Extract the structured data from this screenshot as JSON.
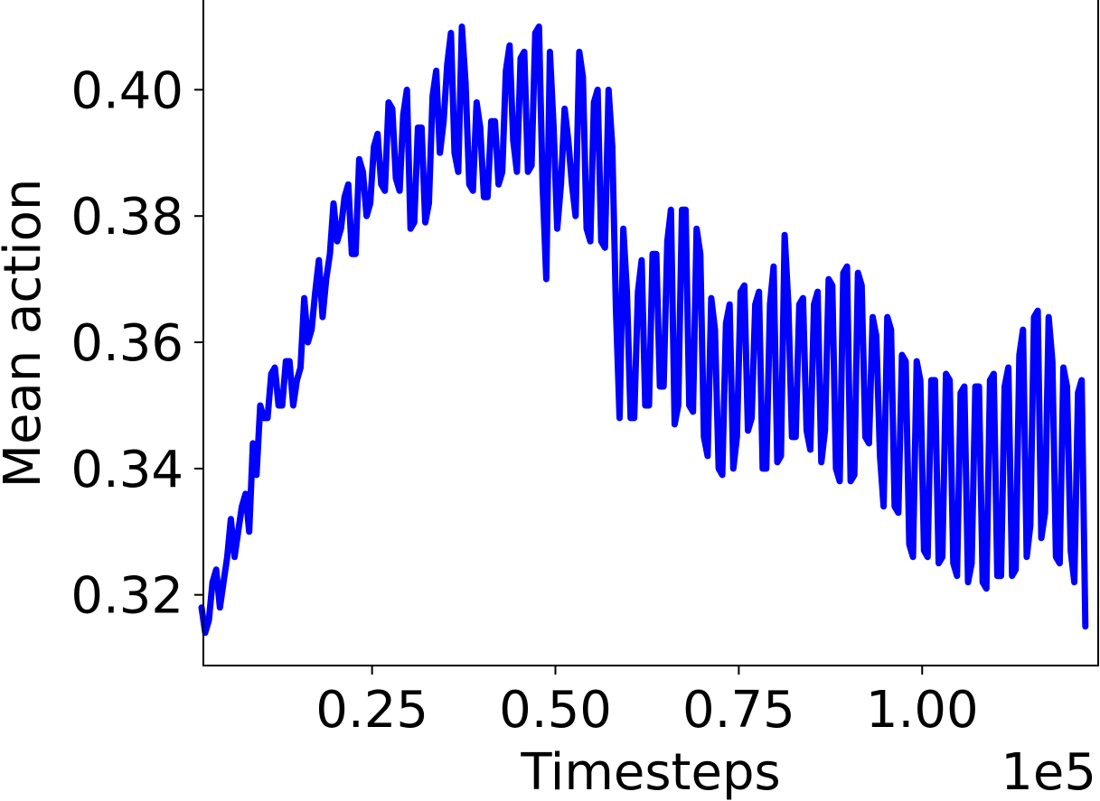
{
  "chart_data": {
    "type": "line",
    "title": "",
    "xlabel": "Timesteps",
    "ylabel": "Mean action",
    "x_offset_label": "1e5",
    "xlim": [
      0.02,
      1.24
    ],
    "ylim": [
      0.3088,
      0.4145
    ],
    "xticks": [
      0.25,
      0.5,
      0.75,
      1.0
    ],
    "xtick_labels": [
      "0.25",
      "0.50",
      "0.75",
      "1.00"
    ],
    "yticks": [
      0.32,
      0.34,
      0.36,
      0.38,
      0.4
    ],
    "ytick_labels": [
      "0.32",
      "0.34",
      "0.36",
      "0.38",
      "0.40"
    ],
    "grid": false,
    "legend": "none",
    "series": [
      {
        "color": "#0000ff",
        "x_unit": "1e5 timesteps",
        "x": [
          0.02,
          0.03,
          0.04,
          0.05,
          0.06,
          0.07,
          0.08,
          0.09,
          0.1,
          0.11,
          0.12,
          0.13,
          0.14,
          0.15,
          0.16,
          0.17,
          0.18,
          0.19,
          0.2,
          0.21,
          0.22,
          0.23,
          0.24,
          0.25,
          0.26,
          0.27,
          0.28,
          0.29,
          0.3,
          0.31,
          0.32,
          0.33,
          0.34,
          0.35,
          0.36,
          0.37,
          0.38,
          0.39,
          0.4,
          0.41,
          0.42,
          0.43,
          0.44,
          0.45,
          0.46,
          0.47,
          0.48,
          0.49,
          0.5,
          0.51,
          0.52,
          0.53,
          0.54,
          0.55,
          0.56,
          0.57,
          0.58,
          0.59,
          0.6,
          0.61,
          0.62,
          0.63,
          0.64,
          0.65,
          0.66,
          0.67,
          0.68,
          0.69,
          0.7,
          0.71,
          0.72,
          0.73,
          0.74,
          0.75,
          0.76,
          0.77,
          0.78,
          0.79,
          0.8,
          0.81,
          0.82,
          0.83,
          0.84,
          0.85,
          0.86,
          0.87,
          0.88,
          0.89,
          0.9,
          0.91,
          0.92,
          0.93,
          0.94,
          0.95,
          0.96,
          0.97,
          0.98,
          0.99,
          1.0,
          1.01,
          1.02,
          1.03,
          1.04,
          1.05,
          1.06,
          1.07,
          1.08,
          1.09,
          1.1,
          1.11,
          1.12,
          1.13,
          1.14,
          1.15,
          1.16,
          1.17,
          1.18,
          1.19,
          1.2,
          1.21,
          1.22,
          1.23,
          1.24
        ],
        "y_min": [
          0.314,
          0.316,
          0.318,
          0.322,
          0.326,
          0.33,
          0.33,
          0.344,
          0.348,
          0.348,
          0.35,
          0.35,
          0.35,
          0.354,
          0.36,
          0.362,
          0.364,
          0.37,
          0.376,
          0.378,
          0.374,
          0.374,
          0.38,
          0.382,
          0.385,
          0.384,
          0.386,
          0.384,
          0.378,
          0.379,
          0.379,
          0.382,
          0.39,
          0.395,
          0.39,
          0.387,
          0.385,
          0.384,
          0.383,
          0.383,
          0.385,
          0.387,
          0.392,
          0.387,
          0.387,
          0.388,
          0.385,
          0.37,
          0.378,
          0.385,
          0.385,
          0.38,
          0.378,
          0.376,
          0.376,
          0.375,
          0.365,
          0.348,
          0.348,
          0.348,
          0.35,
          0.35,
          0.353,
          0.353,
          0.347,
          0.35,
          0.35,
          0.349,
          0.345,
          0.342,
          0.34,
          0.339,
          0.34,
          0.345,
          0.346,
          0.348,
          0.34,
          0.34,
          0.341,
          0.342,
          0.345,
          0.345,
          0.346,
          0.343,
          0.341,
          0.346,
          0.34,
          0.338,
          0.338,
          0.339,
          0.345,
          0.344,
          0.342,
          0.334,
          0.334,
          0.333,
          0.328,
          0.326,
          0.327,
          0.326,
          0.325,
          0.326,
          0.325,
          0.323,
          0.322,
          0.325,
          0.322,
          0.321,
          0.323,
          0.323,
          0.323,
          0.324,
          0.326,
          0.331,
          0.329,
          0.333,
          0.326,
          0.325,
          0.327,
          0.322,
          0.315
        ],
        "y_max": [
          0.318,
          0.322,
          0.324,
          0.326,
          0.332,
          0.334,
          0.336,
          0.339,
          0.35,
          0.355,
          0.356,
          0.357,
          0.357,
          0.356,
          0.367,
          0.368,
          0.373,
          0.374,
          0.382,
          0.383,
          0.385,
          0.389,
          0.387,
          0.391,
          0.393,
          0.398,
          0.397,
          0.396,
          0.4,
          0.394,
          0.394,
          0.399,
          0.403,
          0.404,
          0.409,
          0.41,
          0.401,
          0.398,
          0.394,
          0.395,
          0.395,
          0.403,
          0.407,
          0.405,
          0.406,
          0.409,
          0.41,
          0.406,
          0.394,
          0.397,
          0.392,
          0.406,
          0.402,
          0.398,
          0.4,
          0.4,
          0.391,
          0.378,
          0.368,
          0.368,
          0.373,
          0.374,
          0.374,
          0.376,
          0.381,
          0.381,
          0.381,
          0.378,
          0.374,
          0.367,
          0.362,
          0.363,
          0.366,
          0.368,
          0.369,
          0.366,
          0.368,
          0.366,
          0.372,
          0.377,
          0.366,
          0.366,
          0.367,
          0.366,
          0.368,
          0.37,
          0.369,
          0.371,
          0.372,
          0.371,
          0.369,
          0.364,
          0.361,
          0.364,
          0.362,
          0.358,
          0.357,
          0.357,
          0.354,
          0.354,
          0.354,
          0.355,
          0.354,
          0.352,
          0.353,
          0.353,
          0.353,
          0.354,
          0.355,
          0.353,
          0.356,
          0.358,
          0.362,
          0.364,
          0.365,
          0.364,
          0.357,
          0.356,
          0.353,
          0.352,
          0.354
        ]
      }
    ]
  }
}
